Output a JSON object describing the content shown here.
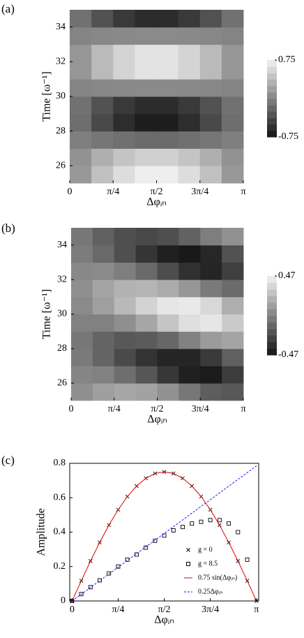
{
  "chart_data": [
    {
      "type": "heatmap",
      "panel_label": "(a)",
      "xlabel": "Δφᵢₙ",
      "ylabel": "Time [ω⁻¹]",
      "x": [
        0.196,
        0.589,
        0.982,
        1.374,
        1.767,
        2.16,
        2.553,
        2.945
      ],
      "y": [
        25.5,
        26.5,
        27.5,
        28.5,
        29.5,
        30.5,
        31.5,
        32.5,
        33.5,
        34.5
      ],
      "z": [
        [
          0.14,
          0.41,
          0.61,
          0.72,
          0.72,
          0.61,
          0.41,
          0.14
        ],
        [
          0.1,
          0.3,
          0.44,
          0.52,
          0.52,
          0.44,
          0.3,
          0.1
        ],
        [
          -0.03,
          -0.09,
          -0.13,
          -0.16,
          -0.16,
          -0.13,
          -0.09,
          -0.03
        ],
        [
          -0.14,
          -0.39,
          -0.58,
          -0.69,
          -0.69,
          -0.58,
          -0.39,
          -0.14
        ],
        [
          -0.12,
          -0.33,
          -0.5,
          -0.59,
          -0.59,
          -0.5,
          -0.33,
          -0.12
        ],
        [
          0.01,
          0.03,
          0.04,
          0.05,
          0.05,
          0.04,
          0.03,
          0.01
        ],
        [
          0.13,
          0.37,
          0.55,
          0.65,
          0.65,
          0.55,
          0.37,
          0.13
        ],
        [
          0.13,
          0.37,
          0.55,
          0.65,
          0.65,
          0.55,
          0.37,
          0.13
        ],
        [
          0.01,
          0.03,
          0.04,
          0.05,
          0.05,
          0.04,
          0.03,
          0.01
        ],
        [
          -0.12,
          -0.33,
          -0.5,
          -0.59,
          -0.59,
          -0.5,
          -0.33,
          -0.12
        ]
      ],
      "xlim": [
        0,
        3.1416
      ],
      "ylim": [
        25,
        35
      ],
      "xticks": [
        0,
        {
          "value": 0.7854,
          "label": "π/4"
        },
        {
          "value": 1.5708,
          "label": "π/2"
        },
        {
          "value": 2.3562,
          "label": "3π/4"
        },
        {
          "value": 3.1416,
          "label": "π"
        }
      ],
      "yticks": [
        26,
        28,
        30,
        32,
        34
      ],
      "clim": [
        -0.75,
        0.75
      ],
      "cticks": [
        -0.75,
        0.75
      ]
    },
    {
      "type": "heatmap",
      "panel_label": "(b)",
      "xlabel": "Δφᵢₙ",
      "ylabel": "Time [ω⁻¹]",
      "x": [
        0.196,
        0.589,
        0.982,
        1.374,
        1.767,
        2.16,
        2.553,
        2.945
      ],
      "y": [
        25.5,
        26.5,
        27.5,
        28.5,
        29.5,
        30.5,
        31.5,
        32.5,
        33.5,
        34.5
      ],
      "z": [
        [
          0.05,
          0.12,
          0.15,
          0.13,
          0.06,
          -0.05,
          -0.16,
          -0.18
        ],
        [
          0.01,
          -0.01,
          -0.09,
          -0.19,
          -0.32,
          -0.42,
          -0.44,
          -0.3
        ],
        [
          -0.04,
          -0.13,
          -0.24,
          -0.34,
          -0.4,
          -0.4,
          -0.31,
          -0.15
        ],
        [
          -0.05,
          -0.13,
          -0.18,
          -0.17,
          -0.12,
          -0.01,
          0.1,
          0.14
        ],
        [
          -0.01,
          -0.01,
          0.05,
          0.15,
          0.28,
          0.39,
          0.42,
          0.3
        ],
        [
          0.03,
          0.12,
          0.23,
          0.34,
          0.42,
          0.43,
          0.36,
          0.18
        ],
        [
          0.05,
          0.14,
          0.2,
          0.21,
          0.17,
          0.08,
          -0.04,
          -0.1
        ],
        [
          0.02,
          0.03,
          -0.02,
          -0.11,
          -0.23,
          -0.35,
          -0.4,
          -0.29
        ],
        [
          -0.03,
          -0.11,
          -0.22,
          -0.33,
          -0.42,
          -0.45,
          -0.39,
          -0.21
        ],
        [
          -0.05,
          -0.15,
          -0.22,
          -0.25,
          -0.22,
          -0.14,
          -0.02,
          0.06
        ]
      ],
      "xlim": [
        0,
        3.1416
      ],
      "ylim": [
        25,
        35
      ],
      "xticks": [
        0,
        {
          "value": 0.7854,
          "label": "π/4"
        },
        {
          "value": 1.5708,
          "label": "π/2"
        },
        {
          "value": 2.3562,
          "label": "3π/4"
        },
        {
          "value": 3.1416,
          "label": "π"
        }
      ],
      "yticks": [
        26,
        28,
        30,
        32,
        34
      ],
      "clim": [
        -0.47,
        0.47
      ],
      "cticks": [
        -0.47,
        0.47
      ]
    },
    {
      "type": "line",
      "panel_label": "(c)",
      "xlabel": "Δφᵢₙ",
      "ylabel": "Amplitude",
      "x": [
        0,
        0.157,
        0.314,
        0.471,
        0.628,
        0.785,
        0.942,
        1.1,
        1.257,
        1.414,
        1.571,
        1.728,
        1.885,
        2.042,
        2.199,
        2.356,
        2.513,
        2.67,
        2.827,
        2.985,
        3.142
      ],
      "series": [
        {
          "name": "g = 0",
          "color": "#000000",
          "marker": "x",
          "values": [
            0,
            0.117,
            0.232,
            0.34,
            0.441,
            0.53,
            0.607,
            0.668,
            0.713,
            0.741,
            0.75,
            0.741,
            0.713,
            0.668,
            0.607,
            0.53,
            0.441,
            0.34,
            0.232,
            0.117,
            0
          ]
        },
        {
          "name": "g = 8.5",
          "color": "#000000",
          "marker": "square",
          "values": [
            0,
            0.04,
            0.08,
            0.12,
            0.16,
            0.2,
            0.24,
            0.27,
            0.31,
            0.35,
            0.38,
            0.41,
            0.43,
            0.45,
            0.46,
            0.47,
            0.47,
            0.45,
            0.4,
            0.24,
            null
          ]
        },
        {
          "name": "0.75 sin(Δφᵢₙ)",
          "color": "#e00000",
          "values": [
            0,
            0.117,
            0.232,
            0.34,
            0.441,
            0.53,
            0.607,
            0.668,
            0.713,
            0.741,
            0.75,
            0.741,
            0.713,
            0.668,
            0.607,
            0.53,
            0.441,
            0.34,
            0.232,
            0.117,
            0
          ]
        },
        {
          "name": "0.25Δφᵢₙ",
          "color": "#1a1aff",
          "dash": true,
          "x": [
            0,
            3.142
          ],
          "values": [
            0,
            0.785
          ]
        }
      ],
      "xlim": [
        -0.04,
        3.18
      ],
      "ylim": [
        0,
        0.8
      ],
      "xticks": [
        0,
        {
          "value": 0.7854,
          "label": "π/4"
        },
        {
          "value": 1.5708,
          "label": "π/2"
        },
        {
          "value": 2.3562,
          "label": "3π/4"
        },
        {
          "value": 3.1416,
          "label": "π"
        }
      ],
      "yticks": [
        0,
        0.2,
        0.4,
        0.6,
        0.8
      ]
    }
  ]
}
